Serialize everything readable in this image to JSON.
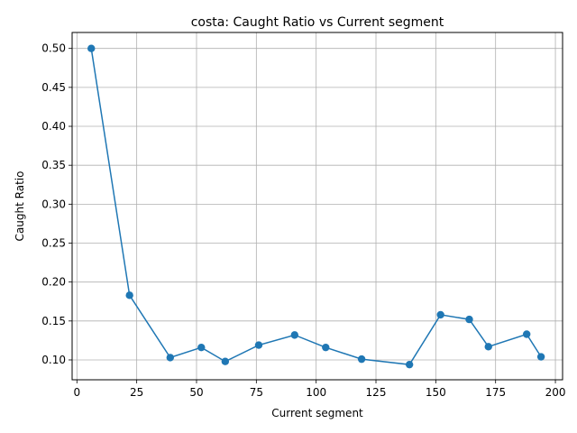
{
  "chart_data": {
    "type": "line",
    "title": "costa: Caught Ratio vs Current segment",
    "xlabel": "Current segment",
    "ylabel": "Caught Ratio",
    "xlim": [
      -2,
      203
    ],
    "ylim": [
      0.0745,
      0.5205
    ],
    "xticks": [
      0,
      25,
      50,
      75,
      100,
      125,
      150,
      175,
      200
    ],
    "yticks": [
      0.1,
      0.15,
      0.2,
      0.25,
      0.3,
      0.35,
      0.4,
      0.45,
      0.5
    ],
    "xtick_labels": [
      "0",
      "25",
      "50",
      "75",
      "100",
      "125",
      "150",
      "175",
      "200"
    ],
    "ytick_labels": [
      "0.10",
      "0.15",
      "0.20",
      "0.25",
      "0.30",
      "0.35",
      "0.40",
      "0.45",
      "0.50"
    ],
    "grid": true,
    "color": "#1f77b4",
    "series": [
      {
        "marker": "circle",
        "x": [
          6,
          22,
          39,
          52,
          62,
          76,
          91,
          104,
          119,
          139,
          152,
          164,
          172,
          188,
          194
        ],
        "y": [
          0.5,
          0.183,
          0.103,
          0.116,
          0.098,
          0.119,
          0.132,
          0.116,
          0.101,
          0.094,
          0.158,
          0.152,
          0.117,
          0.133,
          0.104
        ]
      }
    ]
  }
}
